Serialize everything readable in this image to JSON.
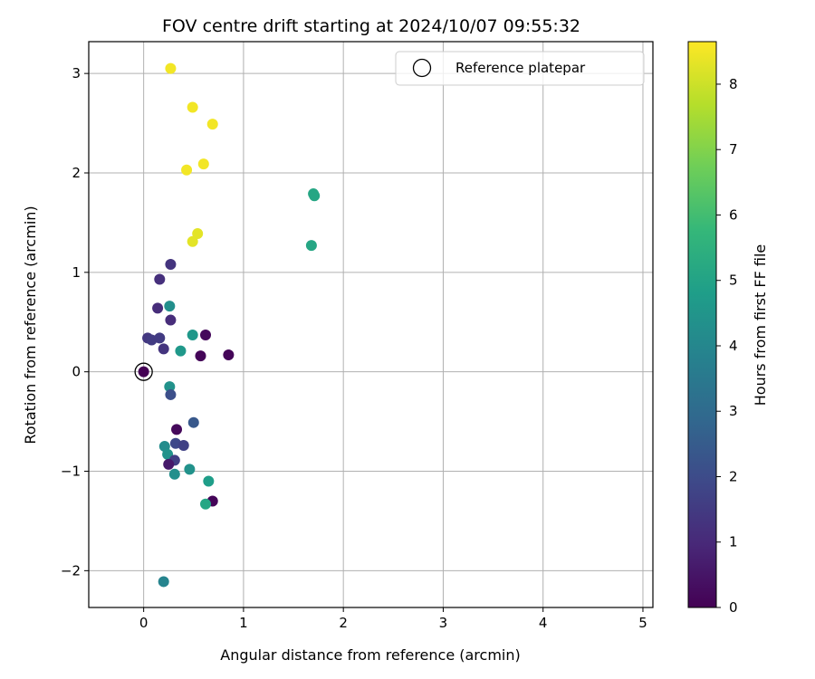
{
  "chart_data": {
    "type": "scatter",
    "title": "FOV centre drift starting at 2024/10/07 09:55:32",
    "xlabel": "Angular distance from reference (arcmin)",
    "ylabel": "Rotation from reference (arcmin)",
    "xlim": [
      -0.55,
      5.1
    ],
    "ylim": [
      -2.37,
      3.32
    ],
    "xticks": [
      0,
      1,
      2,
      3,
      4,
      5
    ],
    "yticks": [
      -2,
      -1,
      0,
      1,
      2,
      3
    ],
    "grid": true,
    "legend": {
      "placement": "upper right",
      "entries": [
        "Reference platepar"
      ]
    },
    "reference_point": {
      "x": 0,
      "y": 0,
      "label": "Reference platepar"
    },
    "colorbar": {
      "label": "Hours from first FF file",
      "colormap": "viridis",
      "range": [
        0,
        8.65
      ],
      "ticks": [
        0,
        1,
        2,
        3,
        4,
        5,
        6,
        7,
        8
      ]
    },
    "points": [
      {
        "x": 0.0,
        "y": 0.0,
        "hours": 0.0
      },
      {
        "x": 0.27,
        "y": 3.05,
        "hours": 8.5
      },
      {
        "x": 0.49,
        "y": 2.66,
        "hours": 8.5
      },
      {
        "x": 0.69,
        "y": 2.49,
        "hours": 8.5
      },
      {
        "x": 0.43,
        "y": 2.03,
        "hours": 8.5
      },
      {
        "x": 0.6,
        "y": 2.09,
        "hours": 8.5
      },
      {
        "x": 0.54,
        "y": 1.39,
        "hours": 8.3
      },
      {
        "x": 0.49,
        "y": 1.31,
        "hours": 8.3
      },
      {
        "x": 1.7,
        "y": 1.79,
        "hours": 5.1
      },
      {
        "x": 1.71,
        "y": 1.77,
        "hours": 5.1
      },
      {
        "x": 1.68,
        "y": 1.27,
        "hours": 5.1
      },
      {
        "x": 0.27,
        "y": 1.08,
        "hours": 1.3
      },
      {
        "x": 0.16,
        "y": 0.93,
        "hours": 1.2
      },
      {
        "x": 0.26,
        "y": 0.66,
        "hours": 4.3
      },
      {
        "x": 0.14,
        "y": 0.64,
        "hours": 1.1
      },
      {
        "x": 0.27,
        "y": 0.52,
        "hours": 1.1
      },
      {
        "x": 0.49,
        "y": 0.37,
        "hours": 4.6
      },
      {
        "x": 0.62,
        "y": 0.37,
        "hours": 0.2
      },
      {
        "x": 0.04,
        "y": 0.34,
        "hours": 1.4
      },
      {
        "x": 0.08,
        "y": 0.32,
        "hours": 1.5
      },
      {
        "x": 0.16,
        "y": 0.34,
        "hours": 1.5
      },
      {
        "x": 0.2,
        "y": 0.23,
        "hours": 1.3
      },
      {
        "x": 0.37,
        "y": 0.21,
        "hours": 4.6
      },
      {
        "x": 0.57,
        "y": 0.16,
        "hours": 0.1
      },
      {
        "x": 0.85,
        "y": 0.17,
        "hours": 0.1
      },
      {
        "x": 0.26,
        "y": -0.15,
        "hours": 4.4
      },
      {
        "x": 0.27,
        "y": -0.23,
        "hours": 2.1
      },
      {
        "x": 0.5,
        "y": -0.51,
        "hours": 2.4
      },
      {
        "x": 0.33,
        "y": -0.58,
        "hours": 0.2
      },
      {
        "x": 0.32,
        "y": -0.72,
        "hours": 1.9
      },
      {
        "x": 0.4,
        "y": -0.74,
        "hours": 1.7
      },
      {
        "x": 0.21,
        "y": -0.75,
        "hours": 4.2
      },
      {
        "x": 0.24,
        "y": -0.83,
        "hours": 4.4
      },
      {
        "x": 0.31,
        "y": -0.89,
        "hours": 1.6
      },
      {
        "x": 0.25,
        "y": -0.93,
        "hours": 0.6
      },
      {
        "x": 0.46,
        "y": -0.98,
        "hours": 4.4
      },
      {
        "x": 0.31,
        "y": -1.03,
        "hours": 4.3
      },
      {
        "x": 0.65,
        "y": -1.1,
        "hours": 4.8
      },
      {
        "x": 0.69,
        "y": -1.3,
        "hours": 0.1
      },
      {
        "x": 0.62,
        "y": -1.33,
        "hours": 5.1
      },
      {
        "x": 0.2,
        "y": -2.11,
        "hours": 3.9
      }
    ]
  }
}
